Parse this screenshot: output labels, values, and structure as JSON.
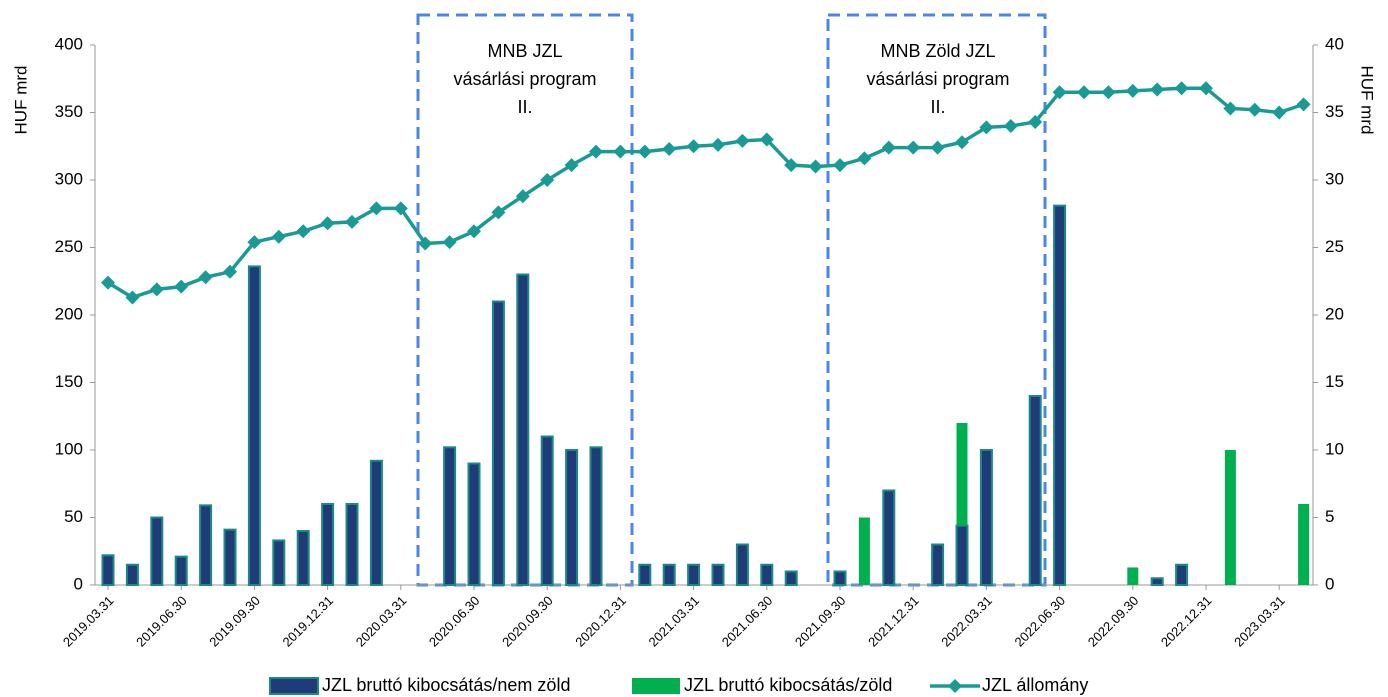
{
  "chart_data": {
    "type": "bar_line",
    "y_label": "HUF mrd",
    "y2_label": "HUF mrd",
    "categories": [
      "2019.03.31",
      null,
      null,
      "2019.06.30",
      null,
      null,
      "2019.09.30",
      null,
      null,
      "2019.12.31",
      null,
      null,
      "2020.03.31",
      null,
      null,
      "2020.06.30",
      null,
      null,
      "2020.09.30",
      null,
      null,
      "2020.12.31",
      null,
      null,
      "2021.03.31",
      null,
      null,
      "2021.06.30",
      null,
      null,
      "2021.09.30",
      null,
      null,
      "2021.12.31",
      null,
      null,
      "2022.03.31",
      null,
      null,
      "2022.06.30",
      null,
      null,
      "2022.09.30",
      null,
      null,
      "2022.12.31",
      null,
      null,
      "2023.03.31",
      null
    ],
    "series": [
      {
        "name": "JZL bruttó kibocsátás/nem zöld",
        "kind": "bar",
        "color": "#1f3c78",
        "outline": "#1a8a86",
        "values": [
          22,
          15,
          50,
          21,
          59,
          41,
          236,
          33,
          40,
          60,
          60,
          92,
          0,
          0,
          102,
          90,
          210,
          230,
          110,
          100,
          102,
          0,
          15,
          15,
          15,
          15,
          30,
          15,
          10,
          0,
          10,
          0,
          70,
          0,
          30,
          44,
          100,
          0,
          140,
          281,
          0,
          0,
          0,
          5,
          15,
          0,
          0,
          0,
          0,
          0
        ]
      },
      {
        "name": "JZL bruttó kibocsátás/zöld",
        "kind": "bar",
        "color": "#00b050",
        "values": [
          0,
          0,
          0,
          0,
          0,
          0,
          0,
          0,
          0,
          0,
          0,
          0,
          0,
          0,
          0,
          0,
          0,
          0,
          0,
          0,
          0,
          0,
          0,
          0,
          0,
          0,
          0,
          0,
          0,
          0,
          0,
          50,
          0,
          0,
          0,
          76,
          0,
          0,
          0,
          0,
          0,
          0,
          13,
          0,
          0,
          0,
          100,
          0,
          0,
          60
        ]
      },
      {
        "name": "JZL állomány",
        "kind": "line",
        "axis": "y2",
        "color": "#1a9a94",
        "values": [
          22.4,
          21.3,
          21.9,
          22.1,
          22.8,
          23.2,
          25.4,
          25.8,
          26.2,
          26.8,
          26.9,
          27.9,
          27.9,
          25.3,
          25.4,
          26.2,
          27.6,
          28.8,
          30.0,
          31.1,
          32.1,
          32.1,
          32.1,
          32.3,
          32.5,
          32.6,
          32.9,
          33.0,
          31.1,
          31.0,
          31.1,
          31.6,
          32.4,
          32.4,
          32.4,
          32.8,
          33.9,
          34.0,
          34.3,
          36.5,
          36.5,
          36.5,
          36.6,
          36.7,
          36.8,
          36.8,
          35.3,
          35.2,
          35.0,
          35.6
        ]
      }
    ],
    "ylim": [
      0,
      400
    ],
    "yticks": [
      0,
      50,
      100,
      150,
      200,
      250,
      300,
      350,
      400
    ],
    "y2lim": [
      0,
      40
    ],
    "y2ticks": [
      0,
      5,
      10,
      15,
      20,
      25,
      30,
      35,
      40
    ],
    "annotations": [
      {
        "lines": [
          "MNB JZL",
          "vásárlási program",
          "II."
        ]
      },
      {
        "lines": [
          "MNB Zöld  JZL",
          "vásárlási program",
          "II."
        ]
      }
    ]
  }
}
